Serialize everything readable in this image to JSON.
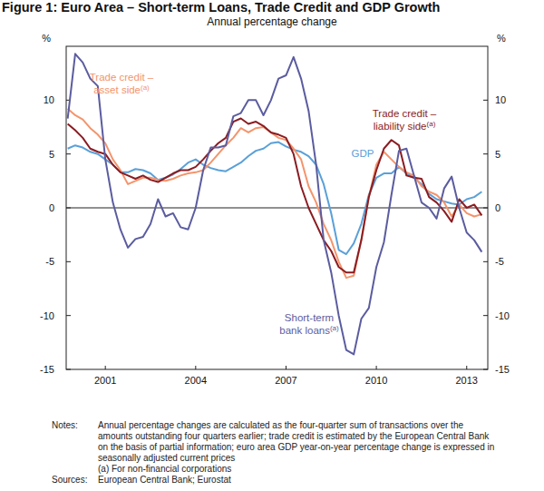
{
  "chart_data": {
    "type": "line",
    "title": "Figure 1: Euro Area – Short-term Loans, Trade Credit and GDP Growth",
    "subtitle": "Annual percentage change",
    "y_unit": "%",
    "x": [
      2000.25,
      2000.5,
      2000.75,
      2001,
      2001.25,
      2001.5,
      2001.75,
      2002,
      2002.25,
      2002.5,
      2002.75,
      2003,
      2003.25,
      2003.5,
      2003.75,
      2004,
      2004.25,
      2004.5,
      2004.75,
      2005,
      2005.25,
      2005.5,
      2005.75,
      2006,
      2006.25,
      2006.5,
      2006.75,
      2007,
      2007.25,
      2007.5,
      2007.75,
      2008,
      2008.25,
      2008.5,
      2008.75,
      2009,
      2009.25,
      2009.5,
      2009.75,
      2010,
      2010.25,
      2010.5,
      2010.75,
      2011,
      2011.25,
      2011.5,
      2011.75,
      2012,
      2012.25,
      2012.5,
      2012.75,
      2013,
      2013.25,
      2013.5,
      2013.75,
      2014
    ],
    "xlim": [
      2000.2,
      2014.2
    ],
    "xticks": [
      {
        "value": 2001.5,
        "label": "2001"
      },
      {
        "value": 2004.5,
        "label": "2004"
      },
      {
        "value": 2007.5,
        "label": "2007"
      },
      {
        "value": 2010.5,
        "label": "2010"
      },
      {
        "value": 2013.5,
        "label": "2013"
      }
    ],
    "ylim": [
      -15,
      15
    ],
    "yticks": [
      -15,
      -10,
      -5,
      0,
      5,
      10
    ],
    "grid": false,
    "series": [
      {
        "label": [
          "Trade credit –",
          "asset side(a)"
        ],
        "color": "#f4946c",
        "values": [
          9.2,
          8.6,
          8.2,
          7.4,
          6.8,
          6.0,
          4.5,
          3.5,
          2.2,
          2.5,
          2.8,
          2.8,
          2.6,
          2.5,
          2.7,
          3.0,
          3.2,
          3.3,
          3.5,
          4.2,
          5.0,
          5.8,
          6.5,
          7.4,
          7.0,
          7.4,
          7.5,
          7.0,
          6.5,
          6.3,
          5.5,
          4.5,
          2.0,
          0.5,
          -1.5,
          -3.0,
          -5.0,
          -6.5,
          -6.3,
          -3.0,
          1.0,
          4.0,
          5.2,
          4.5,
          3.8,
          3.3,
          3.0,
          2.0,
          1.5,
          1.2,
          0.5,
          -0.8,
          0.3,
          -0.5,
          -0.8,
          -0.6
        ]
      },
      {
        "label": [
          "Trade credit –",
          "liability side(a)"
        ],
        "color": "#8a1c22",
        "values": [
          7.8,
          7.2,
          6.5,
          5.5,
          5.2,
          5.0,
          4.0,
          3.3,
          3.0,
          2.7,
          3.0,
          2.6,
          2.4,
          2.8,
          3.2,
          3.5,
          3.5,
          3.8,
          4.5,
          5.3,
          6.0,
          6.5,
          8.0,
          8.3,
          7.8,
          8.0,
          7.6,
          7.0,
          6.8,
          6.5,
          5.0,
          2.0,
          0.0,
          -1.5,
          -3.0,
          -4.0,
          -5.5,
          -6.0,
          -6.0,
          -3.0,
          1.0,
          3.5,
          5.5,
          6.3,
          5.8,
          3.0,
          2.8,
          2.7,
          1.0,
          0.5,
          -0.3,
          -1.3,
          0.8,
          0.0,
          0.3,
          -0.7
        ]
      },
      {
        "label": [
          "GDP"
        ],
        "color": "#5aa0d8",
        "values": [
          5.5,
          5.8,
          5.6,
          5.2,
          5.0,
          4.5,
          4.0,
          3.3,
          3.3,
          3.6,
          3.5,
          3.2,
          2.6,
          2.8,
          3.1,
          3.6,
          4.2,
          4.5,
          4.0,
          3.7,
          3.5,
          3.4,
          3.8,
          4.2,
          4.8,
          5.3,
          5.5,
          6.0,
          6.1,
          5.7,
          5.4,
          5.2,
          4.8,
          4.0,
          2.2,
          -0.5,
          -3.9,
          -4.3,
          -3.3,
          -1.5,
          1.2,
          2.8,
          3.2,
          3.2,
          3.8,
          3.2,
          2.8,
          2.2,
          1.3,
          0.8,
          0.6,
          0.4,
          0.3,
          0.8,
          1.0,
          1.5
        ]
      },
      {
        "label": [
          "Short-term",
          "bank loans(a)"
        ],
        "color": "#5b5c9f",
        "values": [
          8.3,
          14.3,
          13.5,
          12.0,
          11.3,
          4.5,
          0.5,
          -2.0,
          -3.7,
          -2.9,
          -2.7,
          -1.5,
          0.8,
          -0.8,
          -0.5,
          -1.8,
          -2.0,
          0.0,
          3.5,
          5.6,
          5.6,
          5.8,
          8.5,
          8.8,
          10.0,
          10.0,
          8.6,
          10.0,
          12.0,
          12.3,
          14.0,
          12.0,
          9.0,
          4.0,
          -3.0,
          -6.0,
          -10.0,
          -13.2,
          -13.6,
          -10.3,
          -9.3,
          -5.5,
          -3.2,
          1.2,
          5.3,
          5.5,
          3.0,
          0.5,
          0.0,
          -1.0,
          1.8,
          2.9,
          0.0,
          -2.3,
          -3.0,
          -4.1
        ]
      }
    ],
    "notes": {
      "heading": "Notes:",
      "lines": [
        "Annual percentage changes are calculated as the four-quarter sum of transactions over the",
        "amounts outstanding four quarters earlier; trade credit is estimated by the European Central Bank",
        "on the basis of partial information; euro area GDP year-on-year percentage change is expressed in",
        "seasonally adjusted current prices",
        "(a) For non-financial corporations"
      ]
    },
    "sources": {
      "heading": "Sources:",
      "text": "European Central Bank; Eurostat"
    }
  }
}
